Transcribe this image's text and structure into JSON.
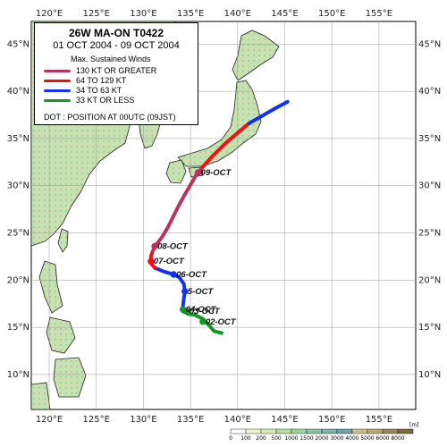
{
  "map": {
    "lon_ticks": [
      "120°E",
      "125°E",
      "130°E",
      "135°E",
      "140°E",
      "145°E",
      "150°E",
      "155°E"
    ],
    "lat_ticks": [
      "45°N",
      "40°N",
      "35°N",
      "30°N",
      "25°N",
      "20°N",
      "15°N",
      "10°N"
    ],
    "colors": {
      "ocean": "#ffffff",
      "land_low": "#c6e3b3",
      "land_mid": "#a7cfa0",
      "land_high": "#dcd49a"
    }
  },
  "legend": {
    "title": "26W  MA-ON  T0422",
    "dates": "01 OCT 2004 - 09 OCT 2004",
    "winds_header": "Max. Sustained Winds",
    "entries": [
      {
        "label": "130 KT OR GREATER",
        "color": "#b8345e"
      },
      {
        "label": "64 TO 129 KT",
        "color": "#ee1111"
      },
      {
        "label": "34 TO 63 KT",
        "color": "#1133ee"
      },
      {
        "label": "33 KT OR LESS",
        "color": "#119922"
      }
    ],
    "dot_note": "DOT : POSITION AT 00UTC (09JST)"
  },
  "track": {
    "segments": [
      {
        "category": "33 KT OR LESS",
        "color": "#119922",
        "points": [
          [
            138.3,
            14.4
          ],
          [
            137.5,
            14.6
          ],
          [
            136.9,
            15.3
          ],
          [
            136.3,
            15.9
          ],
          [
            135.5,
            16.3
          ],
          [
            134.8,
            16.4
          ],
          [
            134.4,
            16.6
          ],
          [
            134.2,
            16.7
          ]
        ]
      },
      {
        "category": "34 TO 63 KT",
        "color": "#1133ee",
        "points": [
          [
            134.2,
            16.7
          ],
          [
            134.2,
            17.3
          ],
          [
            134.3,
            18.1
          ],
          [
            134.4,
            18.8
          ],
          [
            134.3,
            19.6
          ],
          [
            133.8,
            20.3
          ],
          [
            133.2,
            20.6
          ],
          [
            132.2,
            20.9
          ],
          [
            131.2,
            21.3
          ]
        ]
      },
      {
        "category": "64 TO 129 KT",
        "color": "#ee1111",
        "points": [
          [
            131.2,
            21.3
          ],
          [
            130.8,
            21.8
          ],
          [
            130.8,
            22.5
          ],
          [
            131.0,
            23.1
          ]
        ]
      },
      {
        "category": "130 KT OR GREATER",
        "color": "#b8345e",
        "points": [
          [
            131.0,
            23.1
          ],
          [
            131.4,
            23.8
          ],
          [
            132.0,
            24.6
          ],
          [
            132.6,
            25.6
          ],
          [
            133.1,
            26.6
          ],
          [
            133.7,
            27.8
          ],
          [
            134.3,
            28.9
          ],
          [
            135.0,
            30.1
          ],
          [
            135.6,
            31.1
          ],
          [
            136.3,
            32.0
          ]
        ]
      },
      {
        "category": "64 TO 129 KT",
        "color": "#ee1111",
        "points": [
          [
            136.3,
            32.0
          ],
          [
            137.4,
            33.2
          ],
          [
            138.6,
            34.4
          ],
          [
            140.0,
            35.6
          ],
          [
            141.2,
            36.6
          ]
        ]
      },
      {
        "category": "34 TO 63 KT",
        "color": "#1133ee",
        "points": [
          [
            141.2,
            36.6
          ],
          [
            142.6,
            37.4
          ],
          [
            144.0,
            38.2
          ],
          [
            145.3,
            38.9
          ]
        ]
      }
    ],
    "daily_positions": [
      {
        "label": "02-OCT",
        "lon": 136.3,
        "lat": 15.6,
        "color": "#119922"
      },
      {
        "label": "03-OCT",
        "lon": 134.6,
        "lat": 16.7,
        "color": "#119922"
      },
      {
        "label": "04-OCT",
        "lon": 134.2,
        "lat": 16.9,
        "color": "#119922"
      },
      {
        "label": "5-OCT",
        "lon": 134.4,
        "lat": 18.8,
        "color": "#1133ee"
      },
      {
        "label": "06-OCT",
        "lon": 133.2,
        "lat": 20.6,
        "color": "#1133ee"
      },
      {
        "label": "07-OCT",
        "lon": 130.8,
        "lat": 22.0,
        "color": "#ee1111"
      },
      {
        "label": "08-OCT",
        "lon": 131.2,
        "lat": 23.6,
        "color": "#b8345e"
      },
      {
        "label": "09-OCT",
        "lon": 135.8,
        "lat": 31.4,
        "color": "#b8345e"
      }
    ]
  },
  "scale": {
    "unit": "[m]",
    "labels": [
      "0",
      "100",
      "200",
      "500",
      "1000",
      "1500",
      "2000",
      "3000",
      "4000",
      "5000",
      "6000",
      "8000"
    ],
    "colors": [
      "#ffffff",
      "#ecf5cf",
      "#d6ecb4",
      "#b9dca2",
      "#a2cfa1",
      "#8cc2a4",
      "#7cb5a8",
      "#6ea3a4",
      "#c8c08a",
      "#b8a871",
      "#96865a",
      "#7a6a48"
    ]
  }
}
